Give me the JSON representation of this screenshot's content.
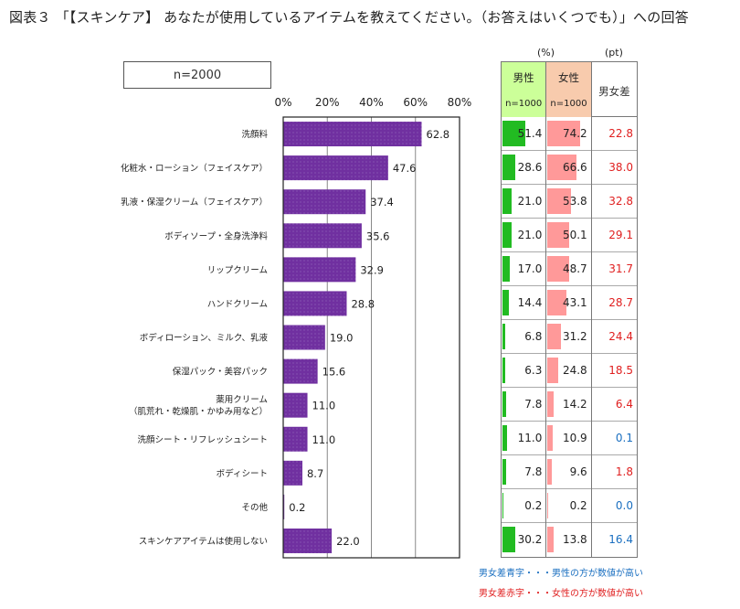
{
  "title": "図表３ 「【スキンケア】 あなたが使用しているアイテムを教えてください。（お答えはいくつでも）」への回答",
  "sample": "n=2000",
  "units": {
    "percent": "(%)",
    "points": "(pt)"
  },
  "table_headers": {
    "male": "男性",
    "male_n": "n=1000",
    "female": "女性",
    "female_n": "n=1000",
    "diff": "男女差"
  },
  "colors": {
    "bar": "#7030a0",
    "male_bar": "#22bb22",
    "female_bar": "#ff9999",
    "male_header": "#ccff99",
    "female_header": "#f8cbad",
    "diff_red": "#e02020",
    "diff_blue": "#1a6fc0"
  },
  "legend": {
    "blue": "男女差青字・・・男性の方が数値が高い",
    "red": "男女差赤字・・・女性の方が数値が高い"
  },
  "chart_data": {
    "type": "bar",
    "orientation": "horizontal",
    "title": "図表３ 「【スキンケア】 あなたが使用しているアイテムを教えてください。（お答えはいくつでも）」への回答",
    "xlabel": "",
    "ylabel": "",
    "xlim": [
      0,
      80
    ],
    "x_ticks": [
      "0%",
      "20%",
      "40%",
      "60%",
      "80%"
    ],
    "x_tick_values": [
      0,
      20,
      40,
      60,
      80
    ],
    "grid": true,
    "categories": [
      [
        "洗顔料"
      ],
      [
        "化粧水・ローション（フェイスケア）"
      ],
      [
        "乳液・保湿クリーム（フェイスケア）"
      ],
      [
        "ボディソープ・全身洗浄料"
      ],
      [
        "リップクリーム"
      ],
      [
        "ハンドクリーム"
      ],
      [
        "ボディローション、ミルク、乳液"
      ],
      [
        "保湿パック・美容パック"
      ],
      [
        "薬用クリーム",
        "（肌荒れ・乾燥肌・かゆみ用など）"
      ],
      [
        "洗顔シート・リフレッシュシート"
      ],
      [
        "ボディシート"
      ],
      [
        "その他"
      ],
      [
        "スキンケアアイテムは使用しない"
      ]
    ],
    "values": [
      62.8,
      47.6,
      37.4,
      35.6,
      32.9,
      28.8,
      19.0,
      15.6,
      11.0,
      11.0,
      8.7,
      0.2,
      22.0
    ],
    "value_labels": [
      "62.8",
      "47.6",
      "37.4",
      "35.6",
      "32.9",
      "28.8",
      "19.0",
      "15.6",
      "11.0",
      "11.0",
      "8.7",
      "0.2",
      "22.0"
    ],
    "table": {
      "male": [
        51.4,
        28.6,
        21.0,
        21.0,
        17.0,
        14.4,
        6.8,
        6.3,
        7.8,
        11.0,
        7.8,
        0.2,
        30.2
      ],
      "male_labels": [
        "51.4",
        "28.6",
        "21.0",
        "21.0",
        "17.0",
        "14.4",
        "6.8",
        "6.3",
        "7.8",
        "11.0",
        "7.8",
        "0.2",
        "30.2"
      ],
      "female": [
        74.2,
        66.6,
        53.8,
        50.1,
        48.7,
        43.1,
        31.2,
        24.8,
        14.2,
        10.9,
        9.6,
        0.2,
        13.8
      ],
      "female_labels": [
        "74.2",
        "66.6",
        "53.8",
        "50.1",
        "48.7",
        "43.1",
        "31.2",
        "24.8",
        "14.2",
        "10.9",
        "9.6",
        "0.2",
        "13.8"
      ],
      "diff_labels": [
        "22.8",
        "38.0",
        "32.8",
        "29.1",
        "31.7",
        "28.7",
        "24.4",
        "18.5",
        "6.4",
        "0.1",
        "1.8",
        "0.0",
        "16.4"
      ],
      "diff_colors": [
        "red",
        "red",
        "red",
        "red",
        "red",
        "red",
        "red",
        "red",
        "red",
        "blue",
        "red",
        "blue",
        "blue"
      ]
    }
  }
}
